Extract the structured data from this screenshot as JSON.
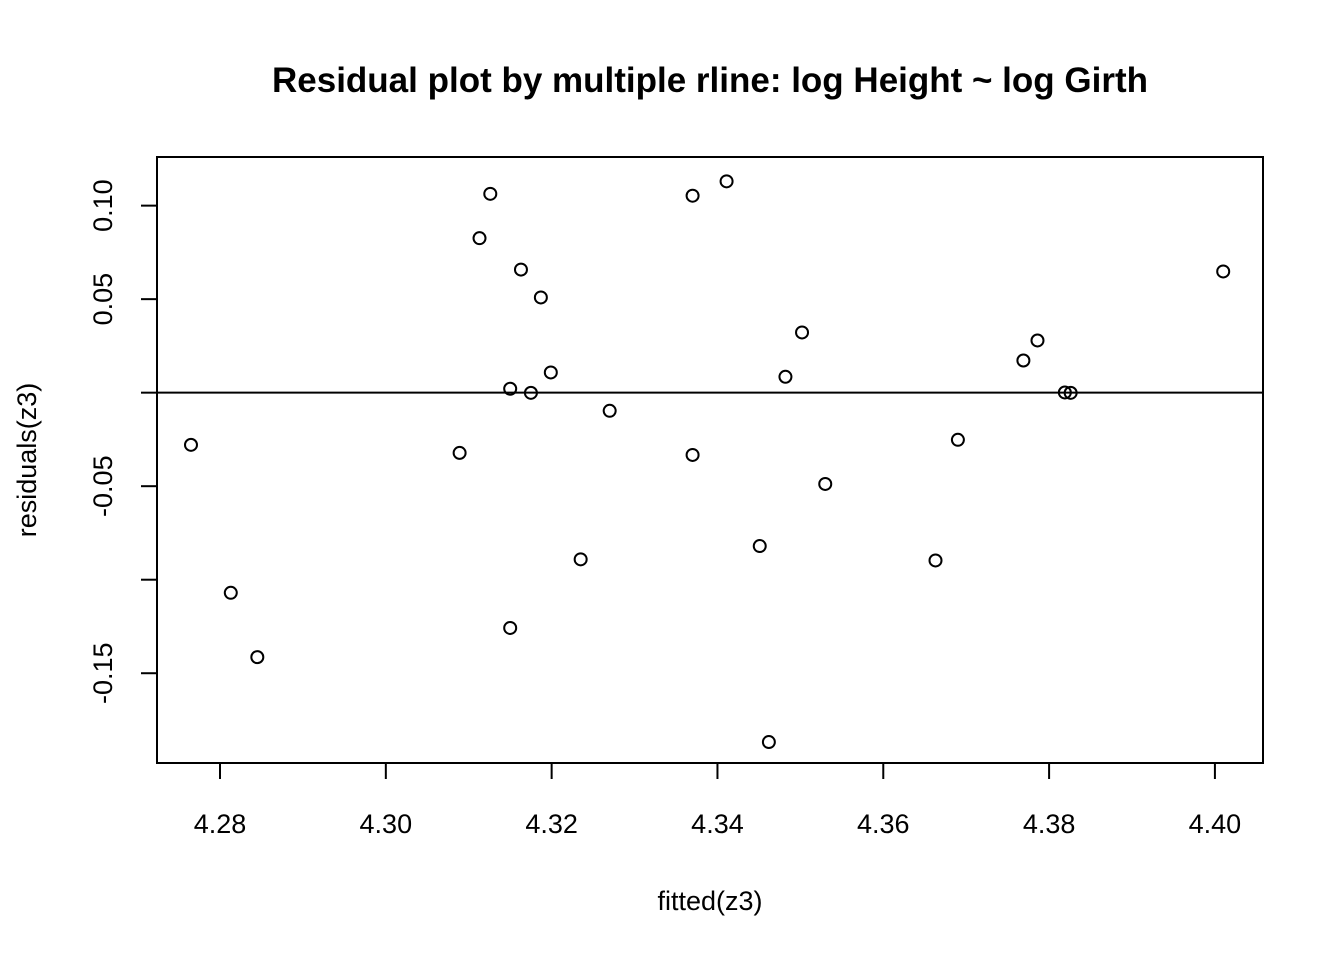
{
  "chart_data": {
    "type": "scatter",
    "title": "Residual plot by multiple rline: log Height ~ log Girth",
    "xlabel": "fitted(z3)",
    "ylabel": "residuals(z3)",
    "xlim": [
      4.2724,
      4.4058
    ],
    "ylim": [
      -0.198,
      0.126
    ],
    "x_ticks": [
      4.28,
      4.3,
      4.32,
      4.34,
      4.36,
      4.38,
      4.4
    ],
    "x_tick_labels": [
      "4.28",
      "4.30",
      "4.32",
      "4.34",
      "4.36",
      "4.38",
      "4.40"
    ],
    "y_ticks": [
      -0.15,
      -0.1,
      -0.05,
      0.0,
      0.05,
      0.1
    ],
    "y_tick_labels": [
      "-0.15",
      "",
      "-0.05",
      "",
      "0.05",
      "0.10"
    ],
    "reference_line_y": 0,
    "grid": false,
    "points": [
      {
        "x": 4.2765,
        "y": -0.0279
      },
      {
        "x": 4.2813,
        "y": -0.107
      },
      {
        "x": 4.2845,
        "y": -0.1414
      },
      {
        "x": 4.3089,
        "y": -0.0322
      },
      {
        "x": 4.3113,
        "y": 0.0826
      },
      {
        "x": 4.3126,
        "y": 0.1063
      },
      {
        "x": 4.315,
        "y": 0.0021
      },
      {
        "x": 4.315,
        "y": -0.1258
      },
      {
        "x": 4.3163,
        "y": 0.0658
      },
      {
        "x": 4.3175,
        "y": -0.0001
      },
      {
        "x": 4.3187,
        "y": 0.0509
      },
      {
        "x": 4.3199,
        "y": 0.0108
      },
      {
        "x": 4.3235,
        "y": -0.0891
      },
      {
        "x": 4.327,
        "y": -0.0097
      },
      {
        "x": 4.337,
        "y": 0.1053
      },
      {
        "x": 4.337,
        "y": -0.0333
      },
      {
        "x": 4.3411,
        "y": 0.113
      },
      {
        "x": 4.3451,
        "y": -0.082
      },
      {
        "x": 4.3462,
        "y": -0.1868
      },
      {
        "x": 4.3482,
        "y": 0.0085
      },
      {
        "x": 4.3502,
        "y": 0.0322
      },
      {
        "x": 4.353,
        "y": -0.0488
      },
      {
        "x": 4.3663,
        "y": -0.0897
      },
      {
        "x": 4.369,
        "y": -0.0252
      },
      {
        "x": 4.3769,
        "y": 0.0172
      },
      {
        "x": 4.3786,
        "y": 0.0279
      },
      {
        "x": 4.3819,
        "y": 0.0001
      },
      {
        "x": 4.3826,
        "y": -0.0001
      },
      {
        "x": 4.401,
        "y": 0.0648
      }
    ]
  }
}
